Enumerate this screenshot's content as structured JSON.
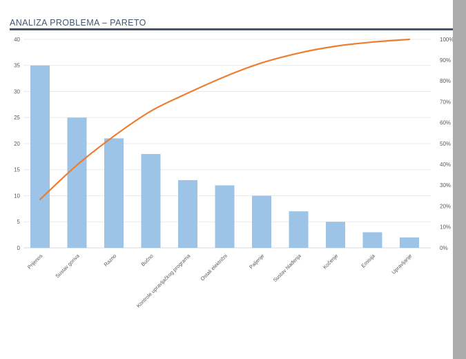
{
  "window": {
    "title": "ANALIZA PROBLEMA – PARETO",
    "accent_color": "#44546A",
    "page_background": "#FFFFFF",
    "side_strip_color": "#ACACAC"
  },
  "chart_data": {
    "type": "bar",
    "subtype": "pareto (sorted bars + smoothed cumulative-percent line on secondary axis)",
    "title": "ANALIZA PROBLEMA – PARETO",
    "categories": [
      "Prijenos",
      "Sustav goriva",
      "Razno",
      "Bučno",
      "Kontrole upravljačkog programa",
      "Ostali električni",
      "Paljenje",
      "Sustav hlađenja",
      "Kočenje",
      "Emisija",
      "Upravljanje"
    ],
    "values": [
      35,
      25,
      21,
      18,
      13,
      12,
      10,
      7,
      5,
      3,
      2
    ],
    "series": [
      {
        "name": "count-bars",
        "type": "bar",
        "axis": "left",
        "values": [
          35,
          25,
          21,
          18,
          13,
          12,
          10,
          7,
          5,
          3,
          2
        ],
        "color": "#9DC3E6"
      },
      {
        "name": "cumulative-percent-line",
        "type": "line",
        "axis": "right",
        "smoothed": true,
        "values": [
          23.2,
          39.7,
          53.6,
          65.6,
          74.2,
          82.1,
          88.7,
          93.4,
          96.7,
          98.7,
          100.0
        ],
        "color": "#ED7D31"
      }
    ],
    "left_axis": {
      "min": 0,
      "max": 40,
      "step": 5,
      "tick_labels": [
        "0",
        "5",
        "10",
        "15",
        "20",
        "25",
        "30",
        "35",
        "40"
      ]
    },
    "right_axis": {
      "min": 0,
      "max": 100,
      "step": 10,
      "tick_labels": [
        "0%",
        "10%",
        "20%",
        "30%",
        "40%",
        "50%",
        "60%",
        "70%",
        "80%",
        "90%",
        "100%"
      ]
    },
    "xlabel": "",
    "ylabel": "",
    "grid": "on",
    "legend": "none",
    "gridline_color": "#EAEAEA",
    "axis_line_color": "#D9D9D9",
    "tick_label_color": "#595959"
  }
}
